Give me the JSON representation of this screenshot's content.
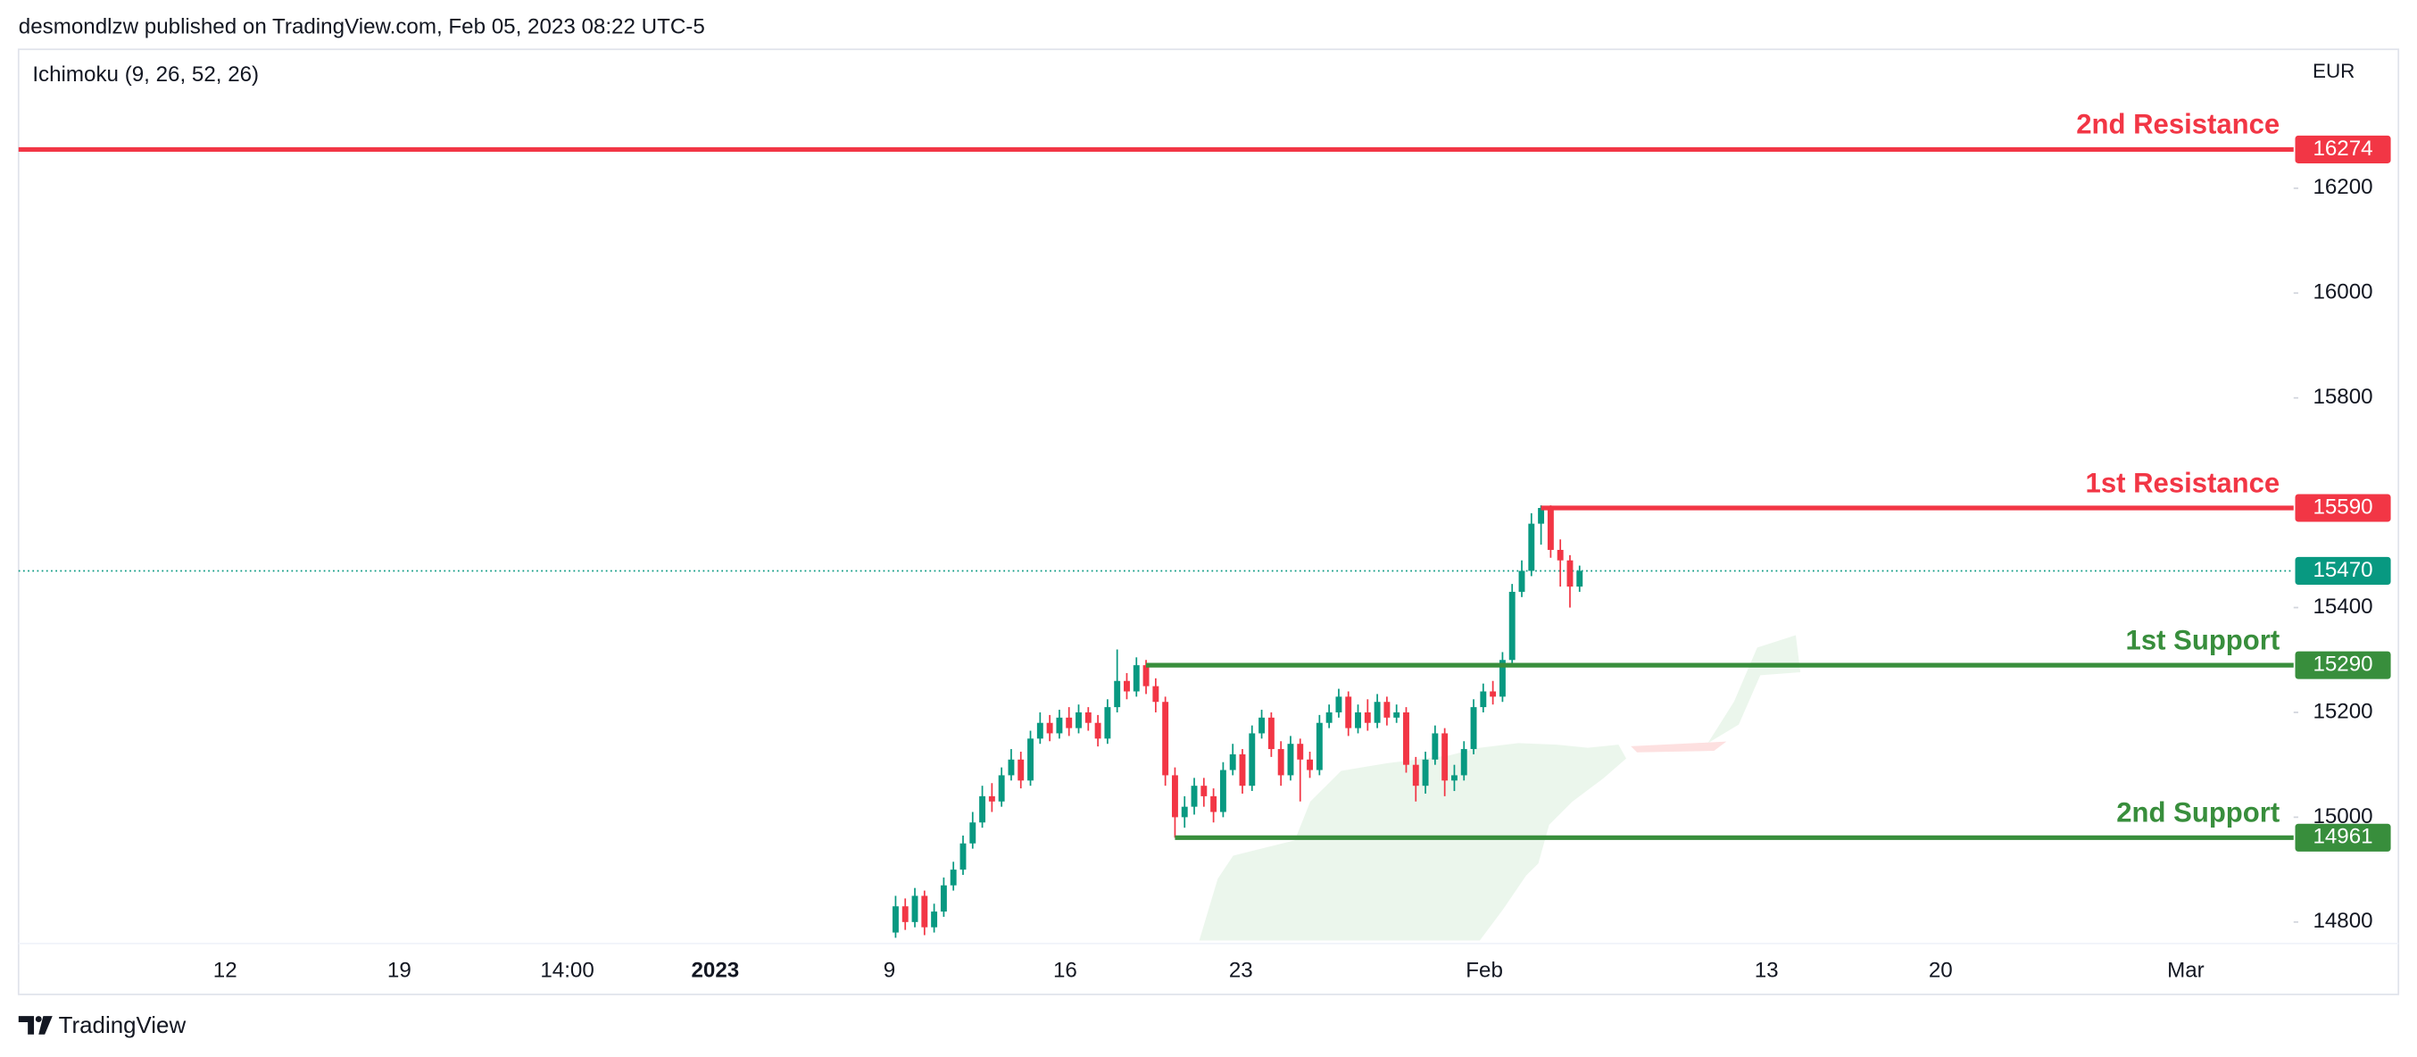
{
  "chart_data": {
    "type": "candlestick",
    "header": "desmondlzw published on TradingView.com, Feb 05, 2023 08:22 UTC-5",
    "indicator": "Ichimoku (9, 26, 52, 26)",
    "currency": "EUR",
    "footer": "TradingView",
    "up_color": "#089981",
    "down_color": "#f23645",
    "ylim": [
      14759,
      16465
    ],
    "yticks": [
      14800,
      15000,
      15200,
      15400,
      15800,
      16000,
      16200
    ],
    "xlabels": [
      "12",
      "19",
      "14:00",
      "2023",
      "9",
      "16",
      "23",
      "Feb",
      "13",
      "20",
      "Mar"
    ],
    "open": [
      14780,
      14830,
      14800,
      14850,
      14790,
      14820,
      14870,
      14900,
      14950,
      14990,
      15040,
      15030,
      15080,
      15110,
      15070,
      15150,
      15180,
      15160,
      15190,
      15170,
      15200,
      15180,
      15150,
      15210,
      15260,
      15240,
      15290,
      15250,
      15220,
      15080,
      15000,
      15020,
      15060,
      15040,
      15010,
      15090,
      15120,
      15060,
      15160,
      15190,
      15130,
      15080,
      15140,
      15110,
      15090,
      15180,
      15200,
      15230,
      15170,
      15200,
      15180,
      15220,
      15190,
      15200,
      15100,
      15060,
      15110,
      15160,
      15070,
      15080,
      15130,
      15210,
      15240,
      15230,
      15300,
      15430,
      15470,
      15560,
      15590,
      15510,
      15490,
      15440
    ],
    "high": [
      14850,
      14845,
      14865,
      14860,
      14835,
      14885,
      14915,
      14965,
      15010,
      15060,
      15065,
      15095,
      15130,
      15125,
      15165,
      15200,
      15195,
      15205,
      15210,
      15215,
      15210,
      15195,
      15225,
      15320,
      15275,
      15305,
      15300,
      15265,
      15230,
      15095,
      15040,
      15075,
      15075,
      15055,
      15105,
      15140,
      15130,
      15175,
      15205,
      15200,
      15145,
      15155,
      15150,
      15125,
      15195,
      15215,
      15245,
      15240,
      15215,
      15225,
      15235,
      15230,
      15215,
      15210,
      15115,
      15125,
      15175,
      15170,
      15100,
      15145,
      15225,
      15255,
      15260,
      15315,
      15445,
      15490,
      15580,
      15595,
      15595,
      15530,
      15500,
      15480
    ],
    "low": [
      14770,
      14785,
      14790,
      14775,
      14780,
      14810,
      14860,
      14890,
      14940,
      14980,
      15010,
      15020,
      15070,
      15055,
      15060,
      15140,
      15145,
      15150,
      15155,
      15160,
      15165,
      15135,
      15140,
      15200,
      15225,
      15230,
      15235,
      15200,
      15060,
      14961,
      14980,
      15005,
      15020,
      14990,
      15000,
      15080,
      15045,
      15050,
      15150,
      15115,
      15060,
      15070,
      15030,
      15075,
      15080,
      15170,
      15190,
      15155,
      15160,
      15165,
      15170,
      15175,
      15180,
      15085,
      15030,
      15045,
      15100,
      15040,
      15050,
      15070,
      15120,
      15200,
      15215,
      15220,
      15290,
      15420,
      15460,
      15520,
      15495,
      15440,
      15400,
      15430
    ],
    "close": [
      14830,
      14800,
      14850,
      14790,
      14820,
      14870,
      14900,
      14950,
      14990,
      15040,
      15030,
      15080,
      15110,
      15070,
      15150,
      15180,
      15160,
      15190,
      15170,
      15200,
      15180,
      15150,
      15210,
      15260,
      15240,
      15290,
      15250,
      15220,
      15080,
      15000,
      15020,
      15060,
      15040,
      15010,
      15090,
      15120,
      15060,
      15160,
      15190,
      15130,
      15080,
      15140,
      15110,
      15090,
      15180,
      15200,
      15230,
      15170,
      15200,
      15180,
      15220,
      15190,
      15200,
      15100,
      15060,
      15110,
      15160,
      15070,
      15080,
      15130,
      15210,
      15240,
      15230,
      15300,
      15430,
      15470,
      15560,
      15590,
      15510,
      15490,
      15440,
      15470
    ],
    "levels": [
      {
        "label": "2nd Resistance",
        "value": 16274,
        "color": "#f23645"
      },
      {
        "label": "1st Resistance",
        "value": 15590,
        "color": "#f23645"
      },
      {
        "label": "1st Support",
        "value": 15290,
        "color": "#388e3c"
      },
      {
        "label": "2nd Support",
        "value": 14961,
        "color": "#388e3c"
      }
    ],
    "last_price": 15470,
    "last_price_color": "#089981"
  }
}
